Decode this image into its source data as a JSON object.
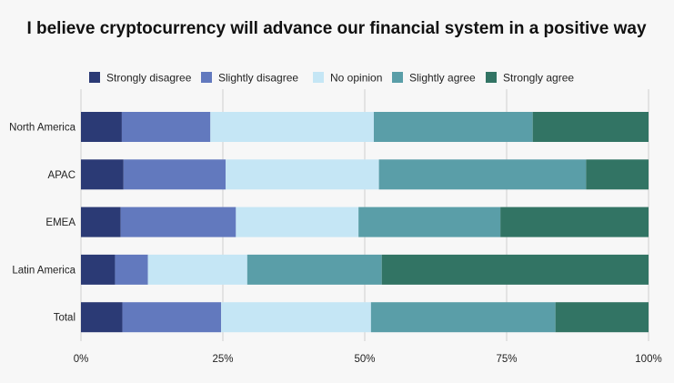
{
  "chart_data": {
    "type": "bar",
    "orientation": "horizontal",
    "stacked": true,
    "percent": true,
    "title": "I believe cryptocurrency will advance our financial system in a positive way",
    "categories": [
      "North America",
      "APAC",
      "EMEA",
      "Latin America",
      "Total"
    ],
    "series": [
      {
        "name": "Strongly disagree",
        "color": "#2b3a75",
        "values": [
          7.2,
          7.5,
          7.0,
          6.0,
          7.3
        ]
      },
      {
        "name": "Slightly disagree",
        "color": "#6279be",
        "values": [
          15.6,
          18.0,
          20.3,
          5.8,
          17.4
        ]
      },
      {
        "name": "No opinion",
        "color": "#c5e6f5",
        "values": [
          28.8,
          27.0,
          21.6,
          17.5,
          26.4
        ]
      },
      {
        "name": "Slightly agree",
        "color": "#5a9ea8",
        "values": [
          28.0,
          36.5,
          25.0,
          23.7,
          32.5
        ]
      },
      {
        "name": "Strongly agree",
        "color": "#327464",
        "values": [
          20.4,
          11.0,
          26.1,
          47.0,
          16.4
        ]
      }
    ],
    "xlim": [
      0,
      100
    ],
    "xticks": [
      "0%",
      "25%",
      "50%",
      "75%",
      "100%"
    ],
    "grid": true,
    "legend_position": "top"
  }
}
